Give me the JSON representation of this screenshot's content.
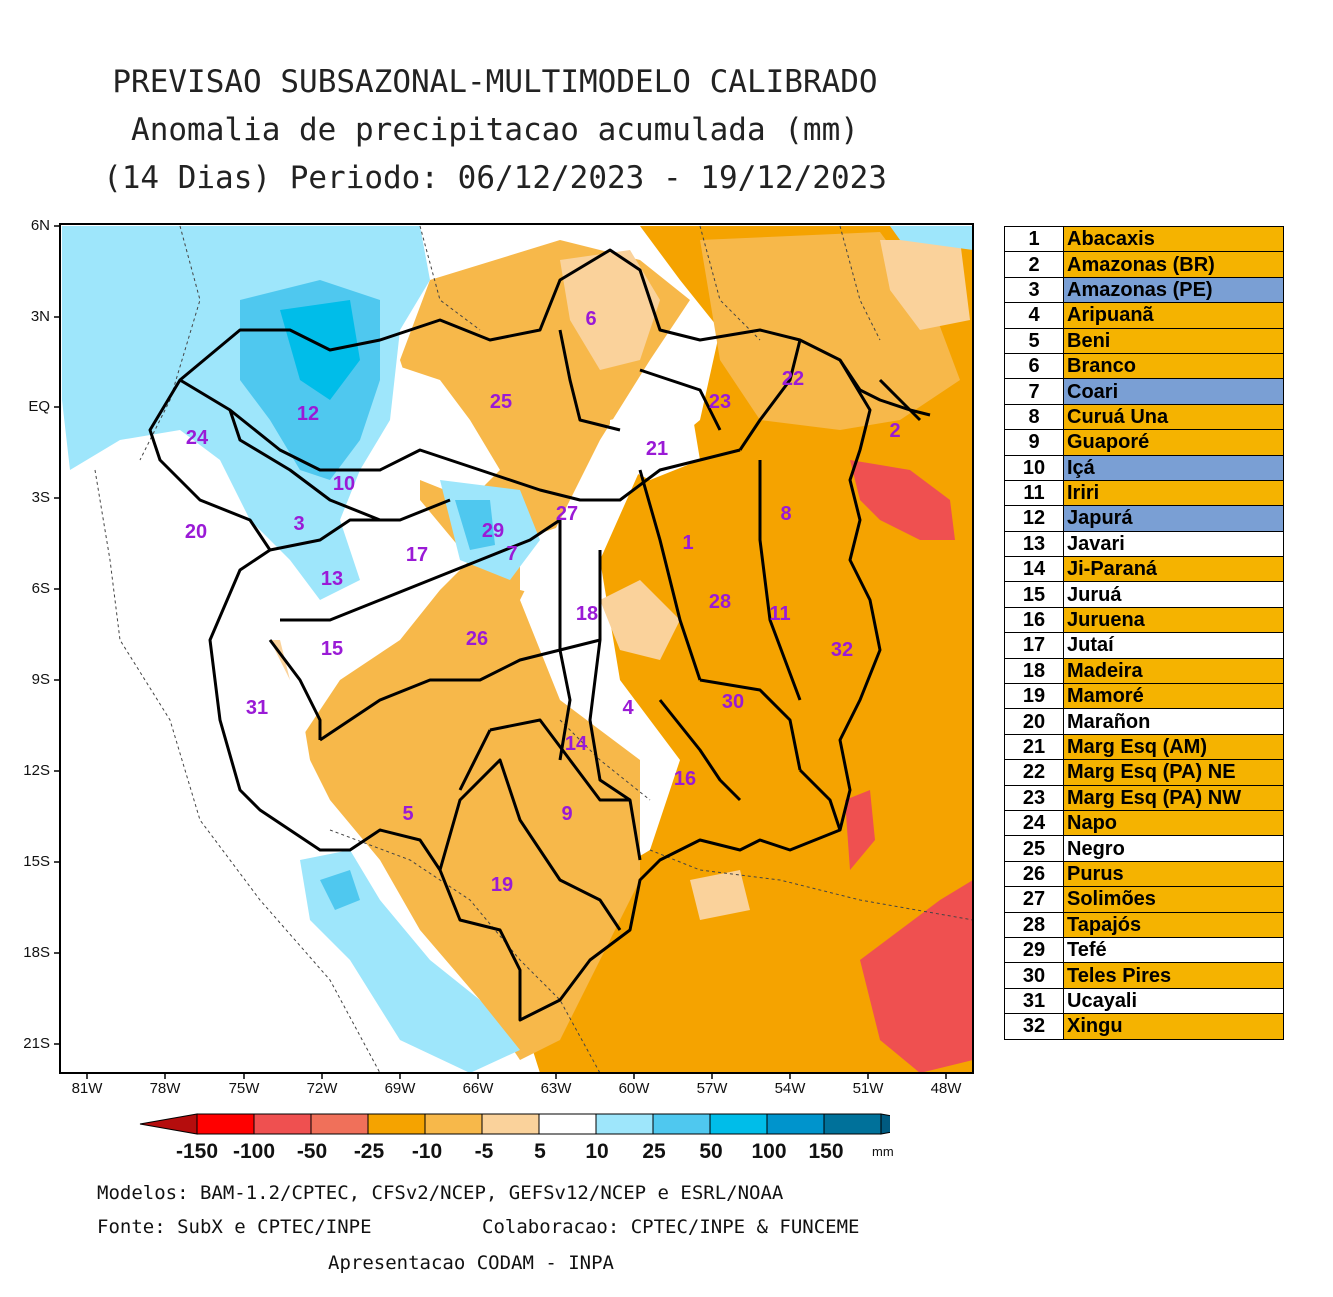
{
  "title": {
    "line1": "PREVISAO SUBSAZONAL-MULTIMODELO CALIBRADO",
    "line2": "Anomalia de precipitacao acumulada (mm)",
    "line3": "(14 Dias) Periodo: 06/12/2023 - 19/12/2023"
  },
  "axes": {
    "lat_labels": [
      "6N",
      "3N",
      "EQ",
      "3S",
      "6S",
      "9S",
      "12S",
      "15S",
      "18S",
      "21S"
    ],
    "lon_labels": [
      "81W",
      "78W",
      "75W",
      "72W",
      "69W",
      "66W",
      "63W",
      "60W",
      "57W",
      "54W",
      "51W",
      "48W"
    ]
  },
  "colorbar": {
    "labels": [
      "-150",
      "-100",
      "-50",
      "-25",
      "-10",
      "-5",
      "5",
      "10",
      "25",
      "50",
      "100",
      "150"
    ],
    "unit": "mm",
    "colors": [
      "#b50d0d",
      "#ff0000",
      "#ef5050",
      "#f0705a",
      "#f5a300",
      "#f7b84a",
      "#fad29b",
      "#ffffff",
      "#9ee6fb",
      "#4fc8ef",
      "#00bde9",
      "#0094cc",
      "#00719a",
      "#005a80"
    ]
  },
  "basin_labels": [
    "1",
    "2",
    "3",
    "4",
    "5",
    "6",
    "7",
    "8",
    "9",
    "10",
    "11",
    "12",
    "13",
    "14",
    "15",
    "16",
    "17",
    "18",
    "19",
    "20",
    "21",
    "22",
    "23",
    "24",
    "25",
    "26",
    "27",
    "28",
    "29",
    "30",
    "31",
    "32"
  ],
  "legend": [
    {
      "num": "1",
      "name": "Abacaxis",
      "color": "#f5b300"
    },
    {
      "num": "2",
      "name": "Amazonas (BR)",
      "color": "#f5b300"
    },
    {
      "num": "3",
      "name": "Amazonas (PE)",
      "color": "#7a9fd4"
    },
    {
      "num": "4",
      "name": "Aripuanã",
      "color": "#f5b300"
    },
    {
      "num": "5",
      "name": "Beni",
      "color": "#f5b300"
    },
    {
      "num": "6",
      "name": "Branco",
      "color": "#f5b300"
    },
    {
      "num": "7",
      "name": "Coari",
      "color": "#7a9fd4"
    },
    {
      "num": "8",
      "name": "Curuá Una",
      "color": "#f5b300"
    },
    {
      "num": "9",
      "name": "Guaporé",
      "color": "#f5b300"
    },
    {
      "num": "10",
      "name": "Içá",
      "color": "#7a9fd4"
    },
    {
      "num": "11",
      "name": "Iriri",
      "color": "#f5b300"
    },
    {
      "num": "12",
      "name": "Japurá",
      "color": "#7a9fd4"
    },
    {
      "num": "13",
      "name": "Javari",
      "color": "#ffffff"
    },
    {
      "num": "14",
      "name": "Ji-Paraná",
      "color": "#f5b300"
    },
    {
      "num": "15",
      "name": "Juruá",
      "color": "#ffffff"
    },
    {
      "num": "16",
      "name": "Juruena",
      "color": "#f5b300"
    },
    {
      "num": "17",
      "name": "Jutaí",
      "color": "#ffffff"
    },
    {
      "num": "18",
      "name": "Madeira",
      "color": "#f5b300"
    },
    {
      "num": "19",
      "name": "Mamoré",
      "color": "#f5b300"
    },
    {
      "num": "20",
      "name": "Marañon",
      "color": "#ffffff"
    },
    {
      "num": "21",
      "name": "Marg Esq (AM)",
      "color": "#f5b300"
    },
    {
      "num": "22",
      "name": "Marg Esq (PA) NE",
      "color": "#f5b300"
    },
    {
      "num": "23",
      "name": "Marg Esq (PA) NW",
      "color": "#f5b300"
    },
    {
      "num": "24",
      "name": "Napo",
      "color": "#f5b300"
    },
    {
      "num": "25",
      "name": "Negro",
      "color": "#ffffff"
    },
    {
      "num": "26",
      "name": "Purus",
      "color": "#f5b300"
    },
    {
      "num": "27",
      "name": "Solimões",
      "color": "#f5b300"
    },
    {
      "num": "28",
      "name": "Tapajós",
      "color": "#f5b300"
    },
    {
      "num": "29",
      "name": "Tefé",
      "color": "#ffffff"
    },
    {
      "num": "30",
      "name": "Teles Pires",
      "color": "#f5b300"
    },
    {
      "num": "31",
      "name": "Ucayali",
      "color": "#ffffff"
    },
    {
      "num": "32",
      "name": "Xingu",
      "color": "#f5b300"
    }
  ],
  "footer": {
    "models": "Modelos: BAM-1.2/CPTEC, CFSv2/NCEP, GEFSv12/NCEP e ESRL/NOAA",
    "source": "Fonte: SubX e CPTEC/INPE",
    "collab": "Colaboracao: CPTEC/INPE & FUNCEME",
    "presentation": "Apresentacao CODAM - INPA"
  }
}
